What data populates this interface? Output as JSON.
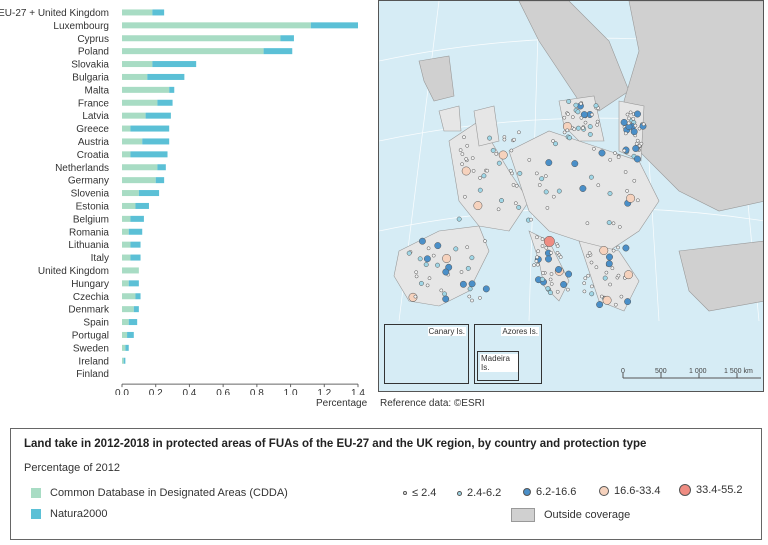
{
  "chart_data": {
    "type": "bar",
    "stacked": true,
    "orientation": "horizontal",
    "categories": [
      "EU-27 + United Kingdom",
      "Luxembourg",
      "Cyprus",
      "Poland",
      "Slovakia",
      "Bulgaria",
      "Malta",
      "France",
      "Latvia",
      "Greece",
      "Austria",
      "Croatia",
      "Netherlands",
      "Germany",
      "Slovenia",
      "Estonia",
      "Belgium",
      "Romania",
      "Lithuania",
      "Italy",
      "United Kingdom",
      "Hungary",
      "Czechia",
      "Denmark",
      "Spain",
      "Portugal",
      "Sweden",
      "Ireland",
      "Finland"
    ],
    "series": [
      {
        "name": "Common Database in Designated Areas (CDDA)",
        "color": "#a8dcc4",
        "values": [
          0.18,
          1.12,
          0.94,
          0.84,
          0.18,
          0.15,
          0.28,
          0.21,
          0.14,
          0.05,
          0.12,
          0.05,
          0.21,
          0.2,
          0.1,
          0.08,
          0.05,
          0.04,
          0.05,
          0.05,
          0.1,
          0.04,
          0.08,
          0.07,
          0.04,
          0.03,
          0.02,
          0.01,
          0.0
        ]
      },
      {
        "name": "Natura2000",
        "color": "#5bc0d6",
        "values": [
          0.07,
          0.28,
          0.08,
          0.17,
          0.26,
          0.22,
          0.03,
          0.09,
          0.15,
          0.23,
          0.16,
          0.22,
          0.05,
          0.05,
          0.12,
          0.08,
          0.08,
          0.08,
          0.06,
          0.06,
          0.0,
          0.06,
          0.03,
          0.03,
          0.05,
          0.04,
          0.02,
          0.01,
          0.0
        ]
      }
    ],
    "xlim": [
      0,
      1.4
    ],
    "xticks": [
      "0.0",
      "0.2",
      "0.4",
      "0.6",
      "0.8",
      "1.0",
      "1.2",
      "1.4"
    ],
    "xlabel": "Percentage",
    "grid": false
  },
  "map": {
    "reference": "Reference data: ©ESRI",
    "insets": [
      "Canary Is.",
      "Azores Is.",
      "Madeira Is."
    ],
    "scale_labels": [
      "0",
      "500",
      "1 000",
      "1 500 km"
    ]
  },
  "legend": {
    "title": "Land take in 2012-2018 in protected areas of FUAs of the EU-27 and the UK region, by country and protection type",
    "subtitle": "Percentage of 2012",
    "cdda_label": "Common Database in Designated Areas (CDDA)",
    "natura_label": "Natura2000",
    "classes": [
      {
        "label": "≤ 2.4",
        "color": "#f2f2f2"
      },
      {
        "label": "2.4-6.2",
        "color": "#9fd6e6"
      },
      {
        "label": "6.2-16.6",
        "color": "#4a8fc8"
      },
      {
        "label": "16.6-33.4",
        "color": "#f6d2bd"
      },
      {
        "label": "33.4-55.2",
        "color": "#ef8c82"
      }
    ],
    "outside_label": "Outside coverage",
    "outside_color": "#d0d0d0"
  }
}
